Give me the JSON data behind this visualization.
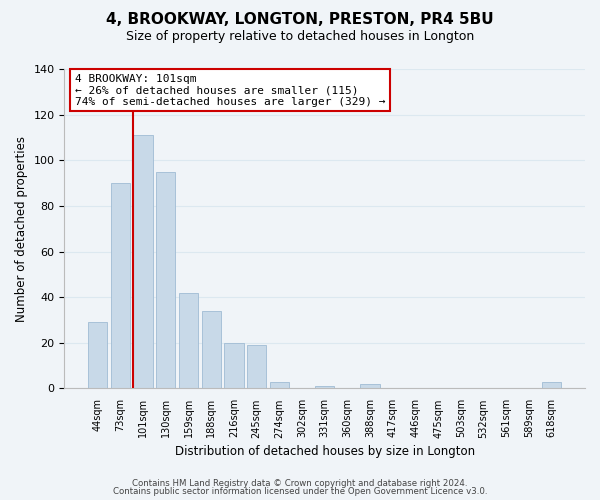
{
  "title": "4, BROOKWAY, LONGTON, PRESTON, PR4 5BU",
  "subtitle": "Size of property relative to detached houses in Longton",
  "xlabel": "Distribution of detached houses by size in Longton",
  "ylabel": "Number of detached properties",
  "footer_lines": [
    "Contains HM Land Registry data © Crown copyright and database right 2024.",
    "Contains public sector information licensed under the Open Government Licence v3.0."
  ],
  "bin_labels": [
    "44sqm",
    "73sqm",
    "101sqm",
    "130sqm",
    "159sqm",
    "188sqm",
    "216sqm",
    "245sqm",
    "274sqm",
    "302sqm",
    "331sqm",
    "360sqm",
    "388sqm",
    "417sqm",
    "446sqm",
    "475sqm",
    "503sqm",
    "532sqm",
    "561sqm",
    "589sqm",
    "618sqm"
  ],
  "bar_heights": [
    29,
    90,
    111,
    95,
    42,
    34,
    20,
    19,
    3,
    0,
    1,
    0,
    2,
    0,
    0,
    0,
    0,
    0,
    0,
    0,
    3
  ],
  "bar_color": "#c8d9e8",
  "bar_edge_color": "#a0bcd4",
  "highlight_bar_index": 2,
  "highlight_line_color": "#cc0000",
  "ylim": [
    0,
    140
  ],
  "yticks": [
    0,
    20,
    40,
    60,
    80,
    100,
    120,
    140
  ],
  "annotation_line1": "4 BROOKWAY: 101sqm",
  "annotation_line2": "← 26% of detached houses are smaller (115)",
  "annotation_line3": "74% of semi-detached houses are larger (329) →",
  "annotation_box_edge_color": "#cc0000",
  "grid_color": "#dce8f0",
  "bg_color": "#f0f4f8",
  "title_fontsize": 11,
  "subtitle_fontsize": 9
}
